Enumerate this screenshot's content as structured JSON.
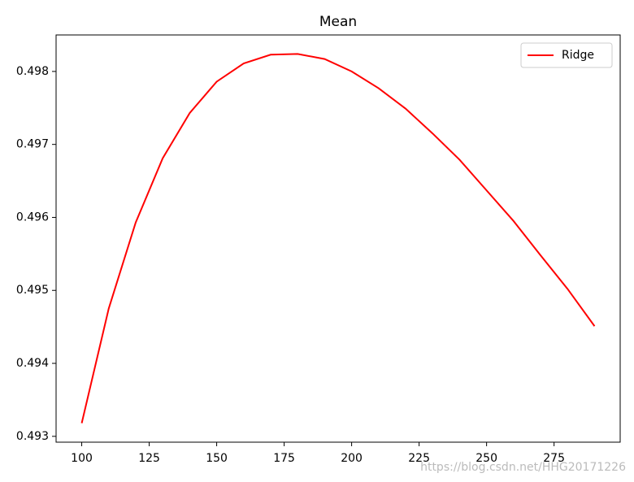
{
  "chart_data": {
    "type": "line",
    "title": "Mean",
    "x": [
      100,
      110,
      120,
      130,
      140,
      150,
      160,
      170,
      180,
      190,
      200,
      210,
      220,
      230,
      240,
      250,
      260,
      270,
      280,
      290
    ],
    "series": [
      {
        "name": "Ridge",
        "color": "#ff0000",
        "values": [
          0.49318,
          0.49475,
          0.49593,
          0.49681,
          0.49743,
          0.49786,
          0.49811,
          0.49823,
          0.49824,
          0.49817,
          0.498,
          0.49777,
          0.49749,
          0.49715,
          0.49679,
          0.49637,
          0.49595,
          0.49548,
          0.49502,
          0.49451
        ]
      }
    ],
    "xlim": [
      90.5,
      299.5
    ],
    "ylim": [
      0.49292,
      0.4985
    ],
    "xticks": [
      100,
      125,
      150,
      175,
      200,
      225,
      250,
      275
    ],
    "yticks": [
      0.493,
      0.494,
      0.495,
      0.496,
      0.497,
      0.498
    ],
    "grid": false,
    "legend": "upper right",
    "watermark": "https://blog.csdn.net/HHG20171226"
  }
}
